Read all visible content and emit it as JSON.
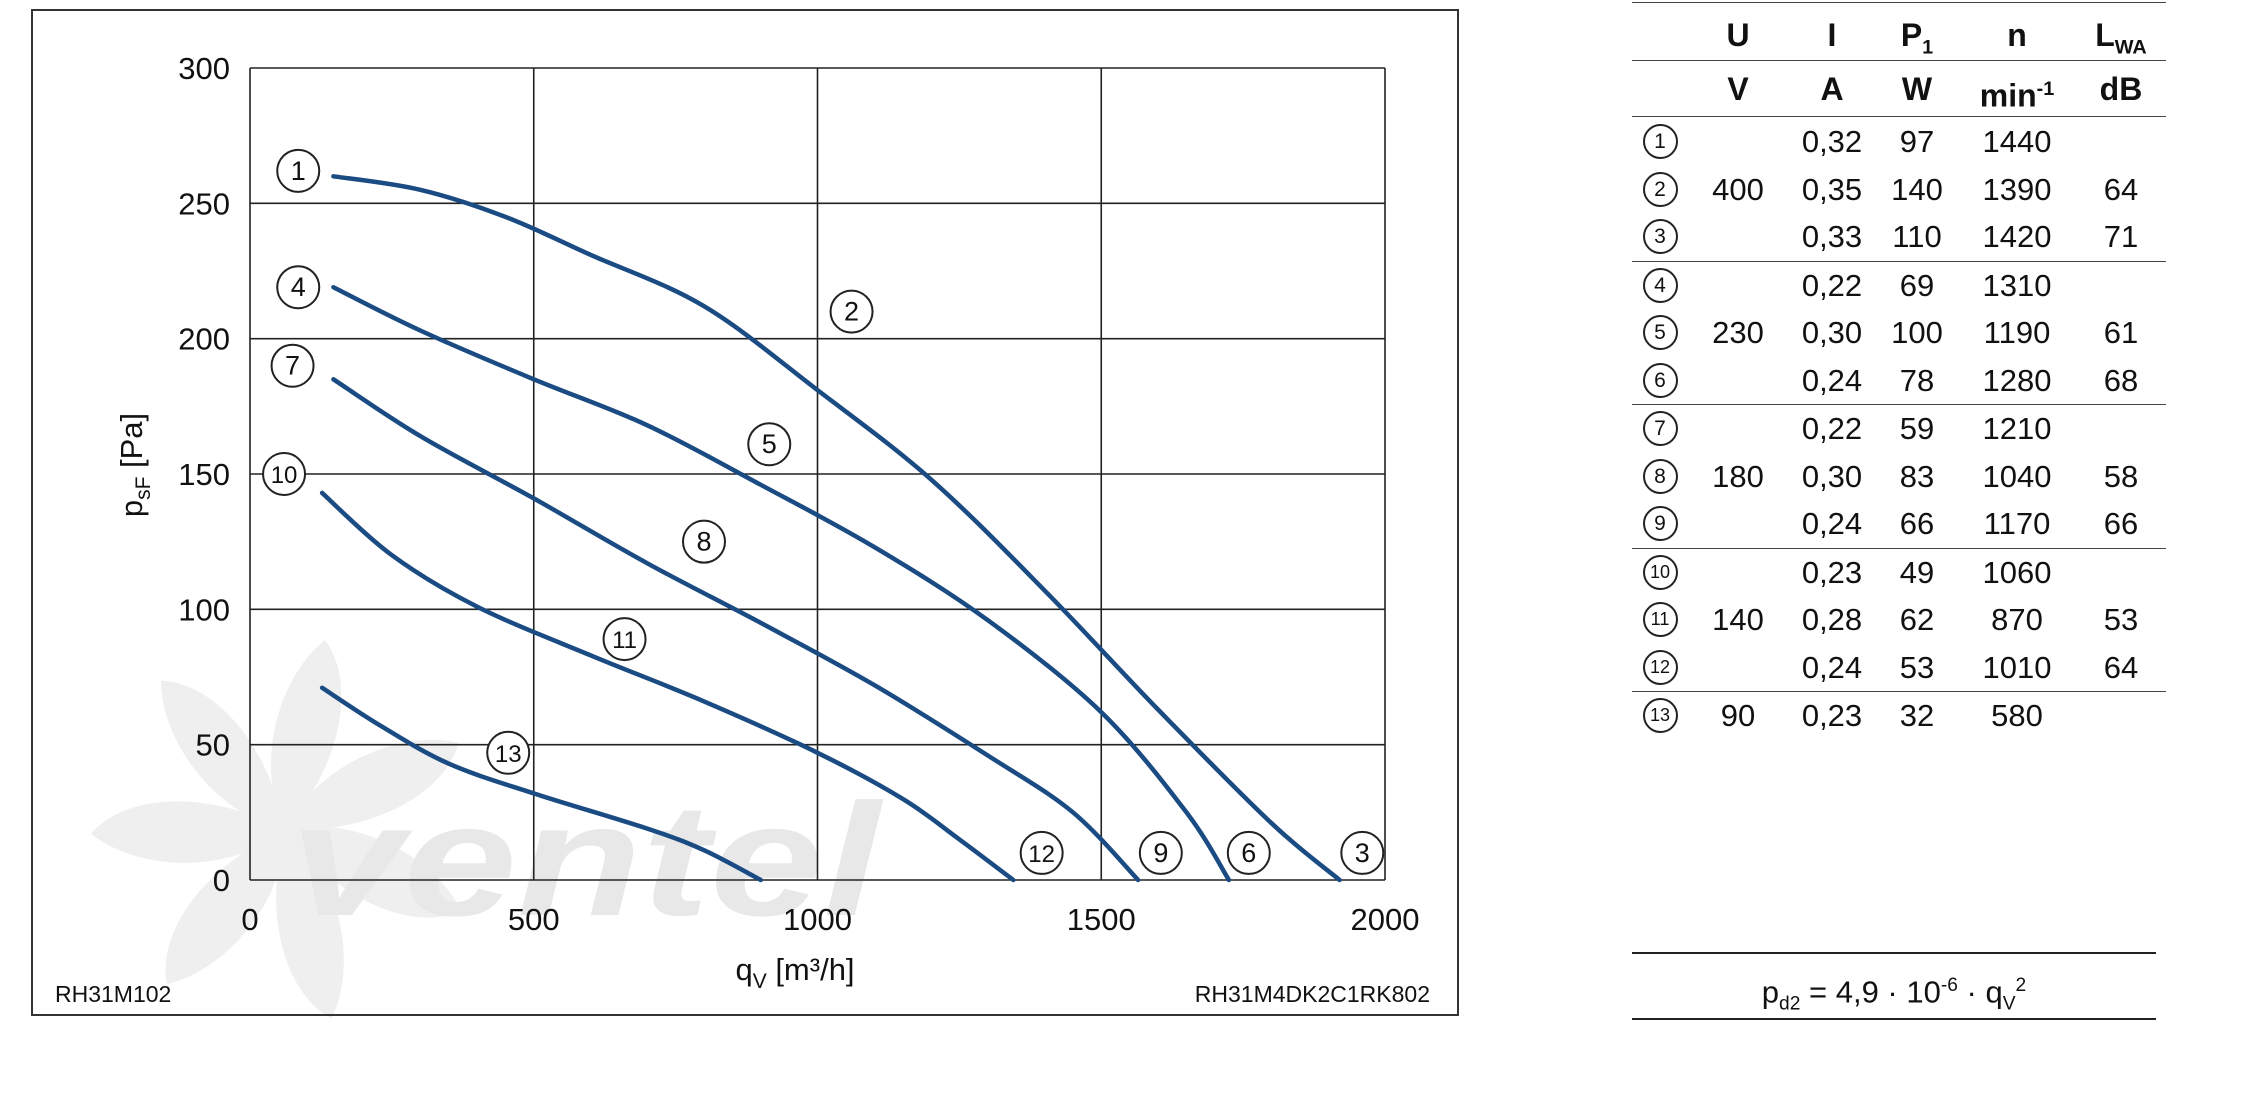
{
  "chart_data": {
    "type": "line",
    "xlabel": "q",
    "xlabel_sub": "V",
    "xlabel_unit": " [m³/h]",
    "ylabel": "p",
    "ylabel_sub": "sF",
    "ylabel_unit": " [Pa]",
    "xlim": [
      0,
      2000
    ],
    "ylim": [
      0,
      300
    ],
    "x_ticks": [
      "0",
      "500",
      "1000",
      "1500",
      "2000"
    ],
    "y_ticks": [
      "0",
      "50",
      "100",
      "150",
      "200",
      "250",
      "300"
    ],
    "grid": true,
    "line_color": "#1a4b82",
    "footer_left": "RH31M102",
    "footer_right": "RH31M4DK2C1RK802",
    "watermark": "ventel",
    "series": [
      {
        "label": "1",
        "label_pos": [
          85,
          262
        ],
        "points": [
          [
            147,
            260
          ],
          [
            300,
            255
          ],
          [
            450,
            245
          ],
          [
            600,
            231
          ],
          [
            800,
            212
          ],
          [
            1000,
            181
          ],
          [
            1200,
            148
          ],
          [
            1400,
            107
          ],
          [
            1600,
            63
          ],
          [
            1800,
            21
          ],
          [
            1920,
            0
          ]
        ]
      },
      {
        "label": "2",
        "label_pos": [
          1060,
          210
        ],
        "points": []
      },
      {
        "label": "3",
        "label_pos": [
          1960,
          10
        ],
        "points": []
      },
      {
        "label": "4",
        "label_pos": [
          85,
          219
        ],
        "points": [
          [
            147,
            219
          ],
          [
            300,
            203
          ],
          [
            500,
            185
          ],
          [
            700,
            168
          ],
          [
            900,
            146
          ],
          [
            1100,
            123
          ],
          [
            1300,
            96
          ],
          [
            1500,
            62
          ],
          [
            1650,
            25
          ],
          [
            1725,
            0
          ]
        ]
      },
      {
        "label": "5",
        "label_pos": [
          915,
          161
        ],
        "points": []
      },
      {
        "label": "6",
        "label_pos": [
          1760,
          10
        ],
        "points": []
      },
      {
        "label": "7",
        "label_pos": [
          75,
          190
        ],
        "points": [
          [
            147,
            185
          ],
          [
            300,
            164
          ],
          [
            500,
            141
          ],
          [
            700,
            117
          ],
          [
            900,
            95
          ],
          [
            1100,
            72
          ],
          [
            1300,
            46
          ],
          [
            1450,
            25
          ],
          [
            1565,
            0
          ]
        ]
      },
      {
        "label": "8",
        "label_pos": [
          800,
          125
        ],
        "points": []
      },
      {
        "label": "9",
        "label_pos": [
          1605,
          10
        ],
        "points": []
      },
      {
        "label": "10",
        "label_pos": [
          60,
          150
        ],
        "points": [
          [
            127,
            143
          ],
          [
            250,
            120
          ],
          [
            400,
            101
          ],
          [
            600,
            83
          ],
          [
            800,
            66
          ],
          [
            1000,
            47
          ],
          [
            1150,
            30
          ],
          [
            1250,
            15
          ],
          [
            1345,
            0
          ]
        ]
      },
      {
        "label": "11",
        "label_pos": [
          660,
          89
        ],
        "points": []
      },
      {
        "label": "12",
        "label_pos": [
          1395,
          10
        ],
        "points": []
      },
      {
        "label": "13",
        "label_pos": [
          455,
          47
        ],
        "points": [
          [
            127,
            71
          ],
          [
            230,
            57
          ],
          [
            350,
            43
          ],
          [
            500,
            32
          ],
          [
            700,
            19
          ],
          [
            800,
            11
          ],
          [
            900,
            0
          ]
        ]
      }
    ]
  },
  "table": {
    "headers": [
      {
        "base": "U",
        "sub": ""
      },
      {
        "base": "I",
        "sub": ""
      },
      {
        "base": "P",
        "sub": "1"
      },
      {
        "base": "n",
        "sub": ""
      },
      {
        "base": "L",
        "sub": "WA"
      }
    ],
    "units": [
      {
        "base": "V",
        "sup": ""
      },
      {
        "base": "A",
        "sup": ""
      },
      {
        "base": "W",
        "sup": ""
      },
      {
        "base": "min",
        "sup": "-1"
      },
      {
        "base": "dB",
        "sup": ""
      }
    ],
    "rows": [
      {
        "id": "1",
        "U": "",
        "I": "0,32",
        "P": "97",
        "n": "1440",
        "L": ""
      },
      {
        "id": "2",
        "U": "400",
        "I": "0,35",
        "P": "140",
        "n": "1390",
        "L": "64"
      },
      {
        "id": "3",
        "U": "",
        "I": "0,33",
        "P": "110",
        "n": "1420",
        "L": "71"
      },
      {
        "id": "4",
        "U": "",
        "I": "0,22",
        "P": "69",
        "n": "1310",
        "L": ""
      },
      {
        "id": "5",
        "U": "230",
        "I": "0,30",
        "P": "100",
        "n": "1190",
        "L": "61"
      },
      {
        "id": "6",
        "U": "",
        "I": "0,24",
        "P": "78",
        "n": "1280",
        "L": "68"
      },
      {
        "id": "7",
        "U": "",
        "I": "0,22",
        "P": "59",
        "n": "1210",
        "L": ""
      },
      {
        "id": "8",
        "U": "180",
        "I": "0,30",
        "P": "83",
        "n": "1040",
        "L": "58"
      },
      {
        "id": "9",
        "U": "",
        "I": "0,24",
        "P": "66",
        "n": "1170",
        "L": "66"
      },
      {
        "id": "10",
        "U": "",
        "I": "0,23",
        "P": "49",
        "n": "1060",
        "L": ""
      },
      {
        "id": "11",
        "U": "140",
        "I": "0,28",
        "P": "62",
        "n": "870",
        "L": "53"
      },
      {
        "id": "12",
        "U": "",
        "I": "0,24",
        "P": "53",
        "n": "1010",
        "L": "64"
      },
      {
        "id": "13",
        "U": "90",
        "I": "0,23",
        "P": "32",
        "n": "580",
        "L": ""
      }
    ],
    "group_separators_after": [
      2,
      5,
      8,
      11
    ]
  },
  "formula": {
    "lhs": "p",
    "lhs_sub": "d2",
    "mid": " = 4,9 · 10",
    "exp": "-6",
    "dot": " · q",
    "q_sub": "V",
    "q_sup": "2"
  }
}
